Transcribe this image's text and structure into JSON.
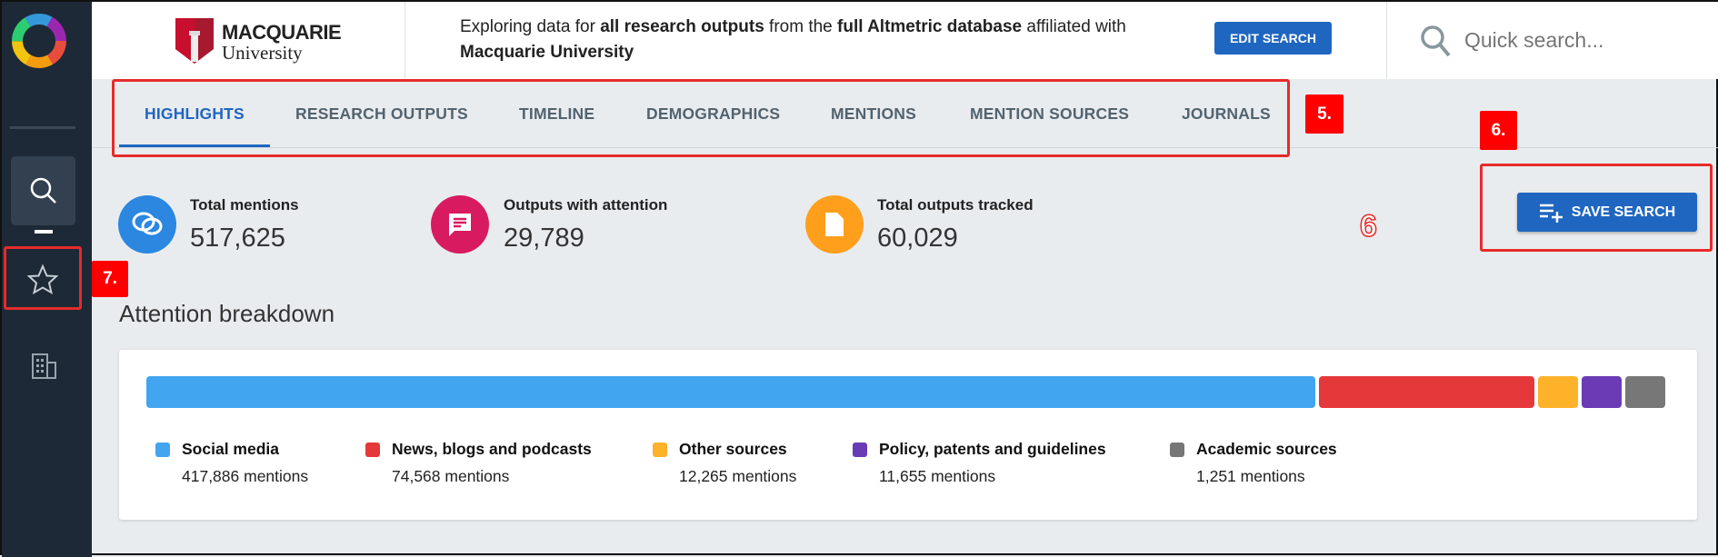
{
  "header": {
    "logo_name": "MACQUARIE",
    "logo_sub": "University",
    "intro_1": "Exploring data for ",
    "intro_bold1": "all research outputs",
    "intro_2": " from the ",
    "intro_bold2": "full Altmetric database",
    "intro_3": " affiliated with ",
    "intro_bold3": "Macquarie University",
    "edit_search": "EDIT SEARCH",
    "search_placeholder": "Quick search..."
  },
  "tabs": [
    {
      "label": "HIGHLIGHTS",
      "active": true
    },
    {
      "label": "RESEARCH OUTPUTS"
    },
    {
      "label": "TIMELINE"
    },
    {
      "label": "DEMOGRAPHICS"
    },
    {
      "label": "MENTIONS"
    },
    {
      "label": "MENTION SOURCES"
    },
    {
      "label": "JOURNALS"
    }
  ],
  "stats": [
    {
      "title": "Total mentions",
      "value": "517,625",
      "color": "#2b87e0"
    },
    {
      "title": "Outputs with attention",
      "value": "29,789",
      "color": "#d81b60"
    },
    {
      "title": "Total outputs tracked",
      "value": "60,029",
      "color": "#ff9f1c"
    }
  ],
  "save_search": "SAVE SEARCH",
  "annotations": {
    "a5": "5.",
    "a6": "6.",
    "a6b": "6",
    "a7": "7."
  },
  "breakdown": {
    "title": "Attention breakdown",
    "items": [
      {
        "name": "Social media",
        "value": 417886,
        "label": "417,886 mentions",
        "color": "#42a5f0"
      },
      {
        "name": "News, blogs and podcasts",
        "value": 74568,
        "label": "74,568 mentions",
        "color": "#e5383b"
      },
      {
        "name": "Other sources",
        "value": 12265,
        "label": "12,265 mentions",
        "color": "#fdb22a"
      },
      {
        "name": "Policy, patents and guidelines",
        "value": 11655,
        "label": "11,655 mentions",
        "color": "#6a3bb5"
      },
      {
        "name": "Academic sources",
        "value": 1251,
        "label": "1,251 mentions",
        "color": "#777777"
      }
    ]
  }
}
